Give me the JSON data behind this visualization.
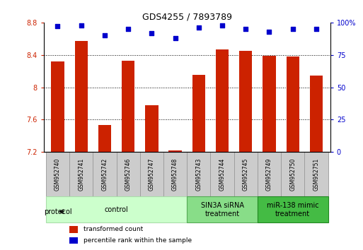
{
  "title": "GDS4255 / 7893789",
  "samples": [
    "GSM952740",
    "GSM952741",
    "GSM952742",
    "GSM952746",
    "GSM952747",
    "GSM952748",
    "GSM952743",
    "GSM952744",
    "GSM952745",
    "GSM952749",
    "GSM952750",
    "GSM952751"
  ],
  "bar_values": [
    8.32,
    8.57,
    7.53,
    8.33,
    7.78,
    7.22,
    8.15,
    8.47,
    8.45,
    8.39,
    8.38,
    8.14
  ],
  "dot_values": [
    97,
    98,
    90,
    95,
    92,
    88,
    96,
    98,
    95,
    93,
    95,
    95
  ],
  "bar_color": "#cc2200",
  "dot_color": "#0000cc",
  "ylim_left": [
    7.2,
    8.8
  ],
  "ylim_right": [
    0,
    100
  ],
  "yticks_left": [
    7.2,
    7.6,
    8.0,
    8.4,
    8.8
  ],
  "ytick_labels_left": [
    "7.2",
    "7.6",
    "8",
    "8.4",
    "8.8"
  ],
  "yticks_right": [
    0,
    25,
    50,
    75,
    100
  ],
  "ytick_labels_right": [
    "0",
    "25",
    "50",
    "75",
    "100%"
  ],
  "groups": [
    {
      "label": "control",
      "start": 0,
      "end": 6,
      "color": "#ccffcc",
      "edge_color": "#aaddaa"
    },
    {
      "label": "SIN3A siRNA\ntreatment",
      "start": 6,
      "end": 9,
      "color": "#88dd88",
      "edge_color": "#55aa55"
    },
    {
      "label": "miR-138 mimic\ntreatment",
      "start": 9,
      "end": 12,
      "color": "#44bb44",
      "edge_color": "#228822"
    }
  ],
  "legend_bar_label": "transformed count",
  "legend_dot_label": "percentile rank within the sample",
  "protocol_label": "protocol",
  "bar_width": 0.55,
  "sample_box_color": "#cccccc",
  "sample_box_edge": "#999999"
}
